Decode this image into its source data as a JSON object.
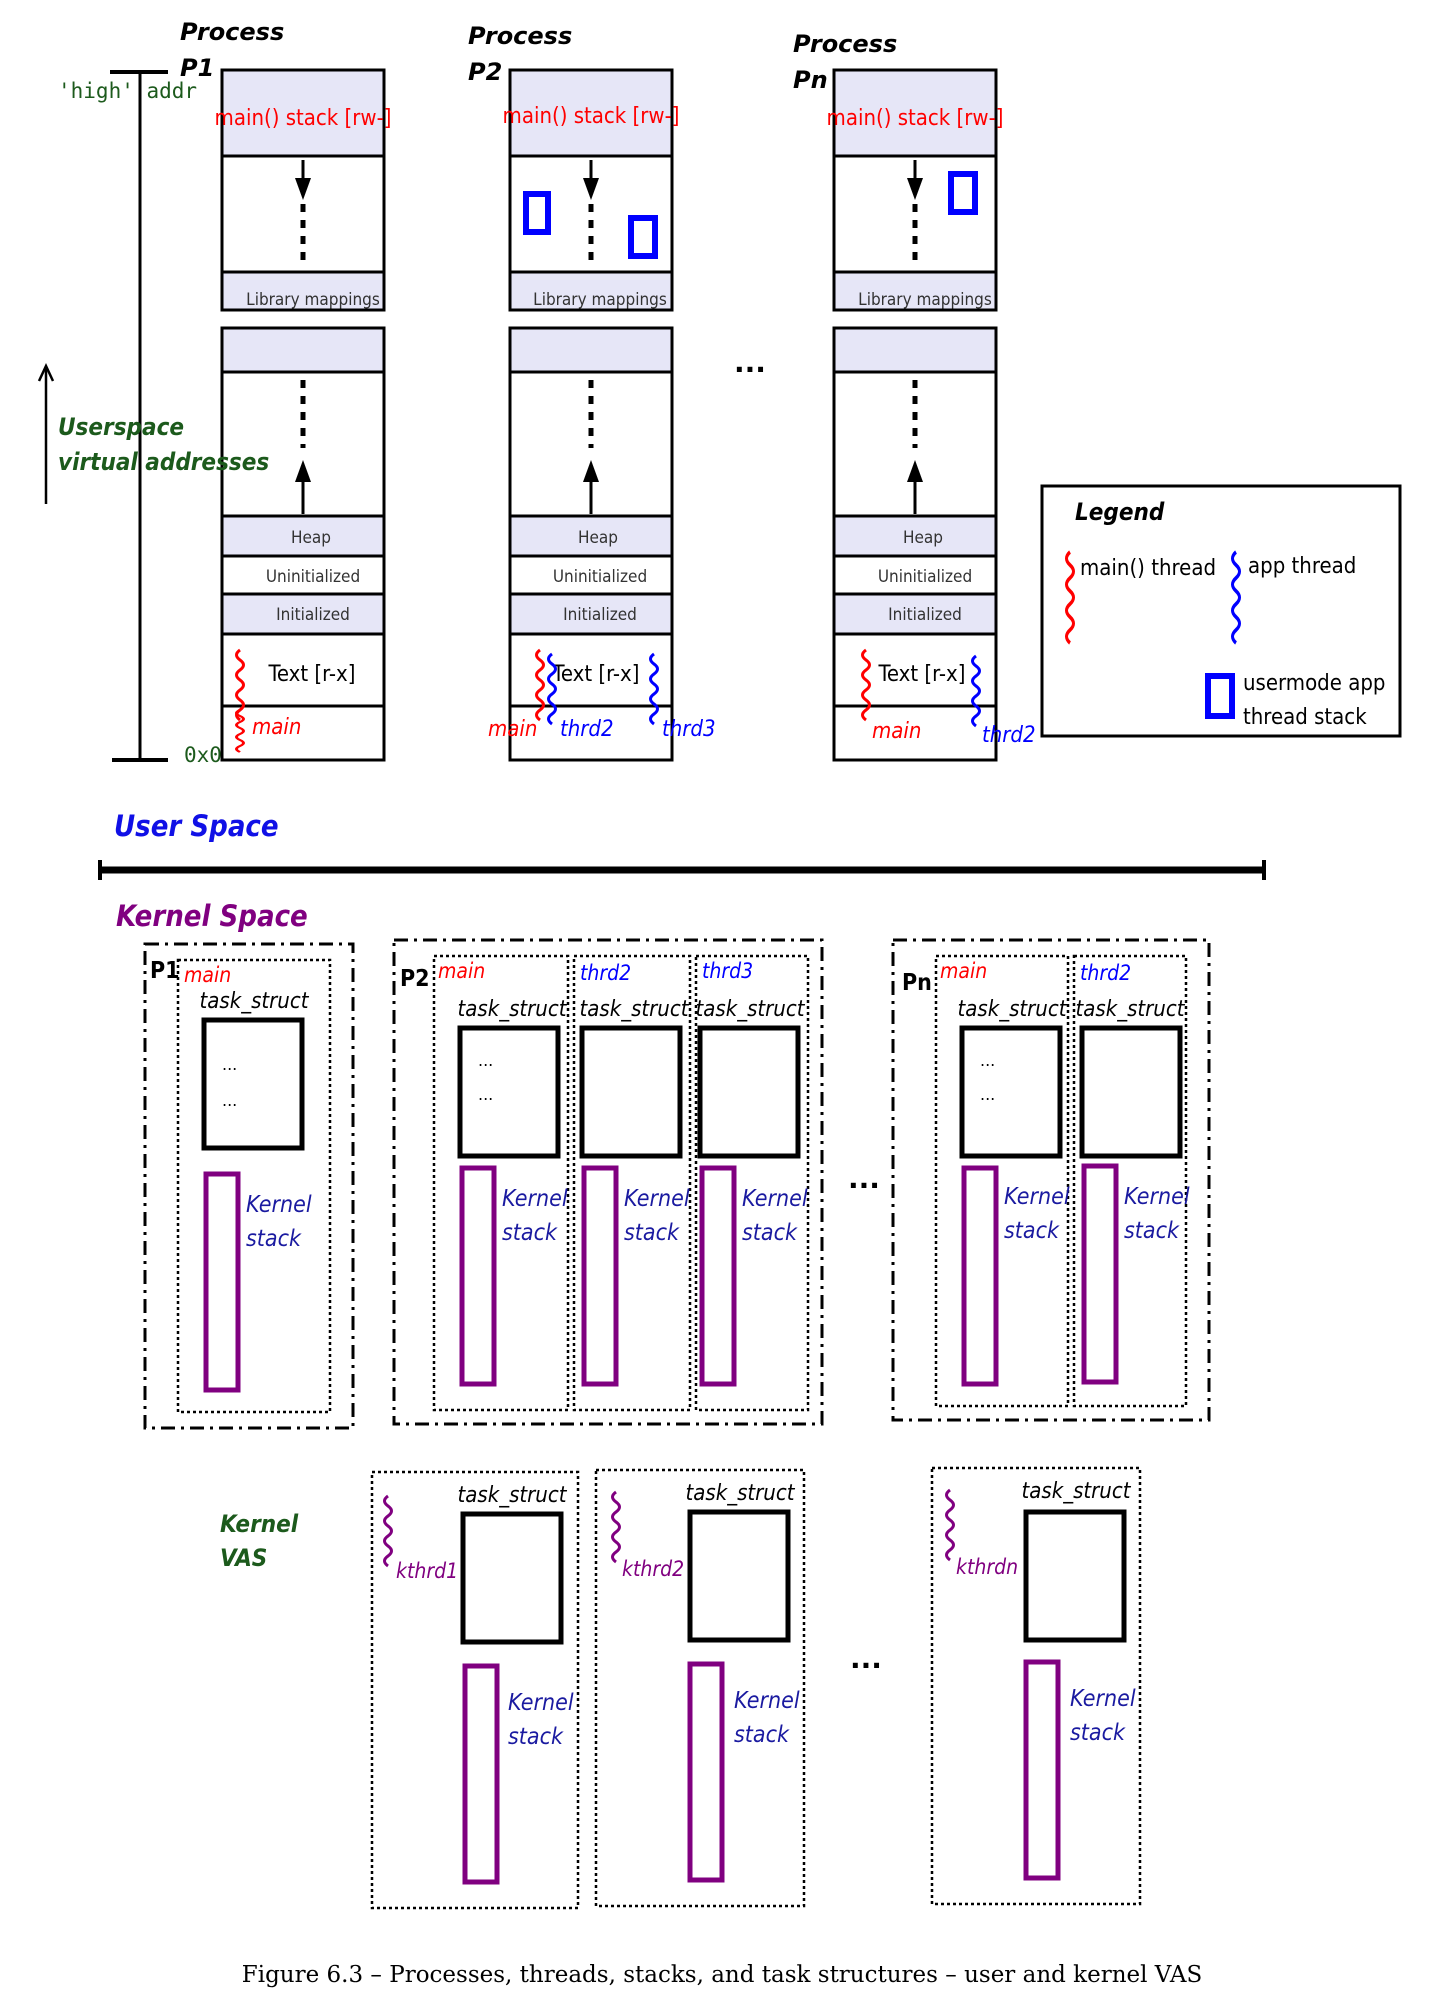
{
  "user_space": {
    "processes": [
      {
        "title_line1": "Process",
        "title_line2": "P1",
        "segments": {
          "stack": "main() stack [rw-]",
          "libs": "Library mappings",
          "heap": "Heap",
          "bss": "Uninitialized",
          "data": "Initialized",
          "text": "Text [r-x]"
        },
        "thread_labels": [
          "main"
        ]
      },
      {
        "title_line1": "Process",
        "title_line2": "P2",
        "segments": {
          "stack": "main() stack [rw-]",
          "libs": "Library mappings",
          "heap": "Heap",
          "bss": "Uninitialized",
          "data": "Initialized",
          "text": "Text [r-x]"
        },
        "thread_labels": [
          "main",
          "thrd2",
          "thrd3"
        ]
      },
      {
        "title_line1": "Process",
        "title_line2": "Pn",
        "segments": {
          "stack": "main() stack [rw-]",
          "libs": "Library mappings",
          "heap": "Heap",
          "bss": "Uninitialized",
          "data": "Initialized",
          "text": "Text [r-x]"
        },
        "thread_labels": [
          "main",
          "thrd2"
        ]
      }
    ],
    "high_addr": "'high' addr",
    "zero_addr": "0x0",
    "axis_label_line1": "Userspace",
    "axis_label_line2": "virtual addresses",
    "ellipsis": "...",
    "legend": {
      "title": "Legend",
      "main_thread": "main() thread",
      "app_thread": "app thread",
      "stack_line1": "usermode app",
      "stack_line2": "thread stack"
    },
    "region_label": "User Space"
  },
  "kernel_space": {
    "region_label": "Kernel Space",
    "groups": [
      {
        "pid": "P1",
        "threads": [
          "main"
        ]
      },
      {
        "pid": "P2",
        "threads": [
          "main",
          "thrd2",
          "thrd3"
        ]
      },
      {
        "pid": "Pn",
        "threads": [
          "main",
          "thrd2"
        ]
      }
    ],
    "task_struct": "task_struct",
    "dots": "...",
    "kernel_stack_line1": "Kernel",
    "kernel_stack_line2": "stack",
    "ellipsis": "...",
    "kvas_line1": "Kernel",
    "kvas_line2": "VAS",
    "kernel_threads": [
      "kthrd1",
      "kthrd2",
      "kthrdn"
    ]
  },
  "caption": "Figure 6.3 – Processes, threads, stacks, and task structures – user and kernel VAS",
  "colors": {
    "segment_fill": "#e6e6f7",
    "main_thread": "#ff0000",
    "app_thread": "#0000ff",
    "kernel_stack": "#800080",
    "green_label": "#1c5a1c",
    "user_space_label": "#1010e6",
    "kernel_space_label": "#800080",
    "kernel_stack_text": "#1a1aa0"
  }
}
